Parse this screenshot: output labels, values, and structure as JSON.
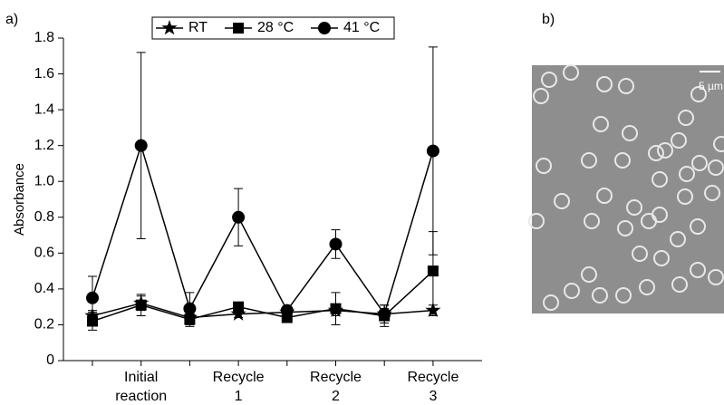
{
  "panel_labels": [
    "a)",
    "b)"
  ],
  "chart_data": {
    "type": "line",
    "ylabel": "Absorbance",
    "categories": [
      null,
      "Initial\nreaction",
      null,
      "Recycle\n1",
      null,
      "Recycle\n2",
      null,
      "Recycle\n3"
    ],
    "ylim": [
      0,
      1.8
    ],
    "yticks": [
      0,
      0.2,
      0.4,
      0.6,
      0.8,
      {
        "value": 1,
        "label": "1.0"
      },
      1.2,
      1.4,
      1.6,
      1.8
    ],
    "series": [
      {
        "name": "RT",
        "marker": "star",
        "color": "#000000",
        "values": [
          0.25,
          0.32,
          0.24,
          0.26,
          0.27,
          0.28,
          0.26,
          0.28
        ],
        "errors": [
          0.03,
          0.04,
          0.02,
          0.02,
          0.02,
          0.03,
          0.03,
          0.03
        ]
      },
      {
        "name": "28 °C",
        "marker": "square",
        "color": "#000000",
        "values": [
          0.22,
          0.31,
          0.23,
          0.3,
          0.24,
          0.29,
          0.25,
          0.5
        ],
        "errors": [
          0.05,
          0.06,
          0.04,
          0.02,
          0.02,
          0.09,
          0.06,
          0.22
        ]
      },
      {
        "name": "41 °C",
        "marker": "circle",
        "color": "#000000",
        "values": [
          0.35,
          1.2,
          0.29,
          0.8,
          0.28,
          0.65,
          0.26,
          1.17
        ],
        "errors": [
          0.12,
          0.52,
          0.09,
          0.16,
          0.02,
          0.08,
          0.05,
          0.58
        ]
      }
    ]
  },
  "image": {
    "scale_label": "5 µm"
  }
}
